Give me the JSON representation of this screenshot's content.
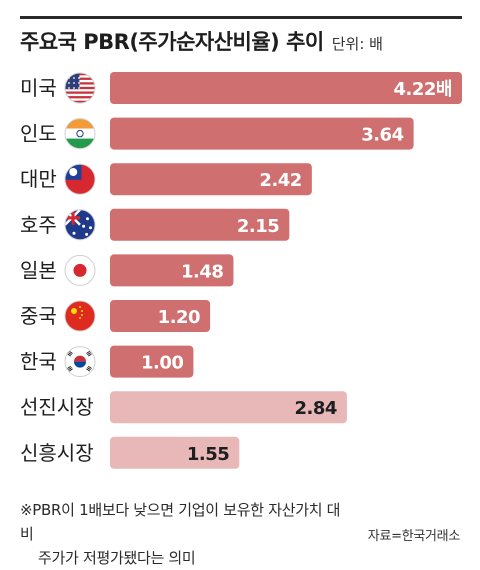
{
  "header": {
    "title": "주요국 PBR(주가순자산비율) 추이",
    "unit": "단위: 배"
  },
  "chart_data": {
    "type": "bar",
    "orientation": "horizontal",
    "title": "주요국 PBR(주가순자산비율) 추이",
    "xlabel": "",
    "ylabel": "",
    "xlim": [
      0,
      4.22
    ],
    "grid": false,
    "categories": [
      "미국",
      "인도",
      "대만",
      "호주",
      "일본",
      "중국",
      "한국",
      "선진시장",
      "신흥시장"
    ],
    "values": [
      4.22,
      3.64,
      2.42,
      2.15,
      1.48,
      1.2,
      1.0,
      2.84,
      1.55
    ],
    "value_labels": [
      "4.22배",
      "3.64",
      "2.42",
      "2.15",
      "1.48",
      "1.20",
      "1.00",
      "2.84",
      "1.55"
    ],
    "flags": [
      "us-flag-icon",
      "india-flag-icon",
      "taiwan-flag-icon",
      "australia-flag-icon",
      "japan-flag-icon",
      "china-flag-icon",
      "korea-flag-icon",
      null,
      null
    ],
    "bar_colors": [
      "#cf6f6f",
      "#cf6f6f",
      "#cf6f6f",
      "#cf6f6f",
      "#cf6f6f",
      "#cf6f6f",
      "#cf6f6f",
      "#e8b7b7",
      "#e8b7b7"
    ],
    "label_colors": [
      "#ffffff",
      "#ffffff",
      "#ffffff",
      "#ffffff",
      "#ffffff",
      "#ffffff",
      "#ffffff",
      "#1e1e1e",
      "#1e1e1e"
    ]
  },
  "footnote": {
    "line1": "※PBR이 1배보다 낮으면 기업이 보유한 자산가치 대비",
    "line2": "주가가 저평가됐다는 의미"
  },
  "source": "자료=한국거래소"
}
